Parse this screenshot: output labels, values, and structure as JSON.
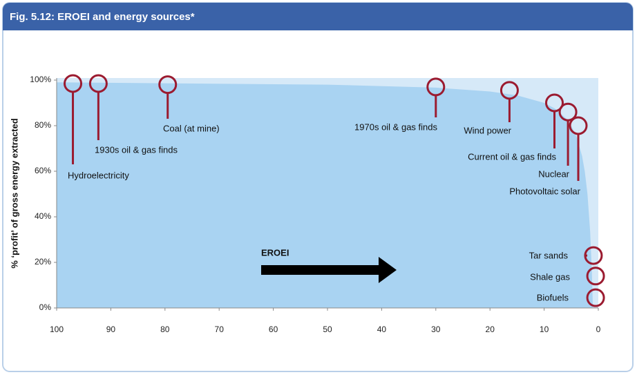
{
  "chart_data": {
    "type": "area",
    "title": "Fig. 5.12: EROEI and energy sources*",
    "y_label": "% ‘profit’ of gross energy extracted",
    "arrow_label": "EROEI",
    "xlim": [
      100,
      0
    ],
    "xticks": [
      100,
      90,
      80,
      70,
      60,
      50,
      40,
      30,
      20,
      10,
      0
    ],
    "ylim": [
      0,
      100
    ],
    "yticks": [
      {
        "value": 0,
        "label": "0%"
      },
      {
        "value": 20,
        "label": "20%"
      },
      {
        "value": 40,
        "label": "40%"
      },
      {
        "value": 60,
        "label": "60%"
      },
      {
        "value": 80,
        "label": "80%"
      },
      {
        "value": 100,
        "label": "100%"
      }
    ],
    "x": [
      100,
      50,
      30,
      20,
      15,
      10,
      8,
      6,
      5,
      4,
      3,
      2.5,
      2,
      1.5,
      1.2,
      1
    ],
    "values": [
      99,
      98,
      96.7,
      95,
      93.3,
      90,
      87.5,
      83.3,
      80,
      75,
      66.7,
      60,
      50,
      33.3,
      16.7,
      0
    ],
    "color": "#a9d3f2",
    "marker_color": "#9b1b30",
    "annotations": [
      {
        "label": "Hydroelectricity",
        "x": 97,
        "y": 98.5
      },
      {
        "label": "1930s oil & gas finds",
        "x": 92.3,
        "y": 98.5
      },
      {
        "label": "Coal (at mine)",
        "x": 79.5,
        "y": 98
      },
      {
        "label": "1970s oil & gas finds",
        "x": 30,
        "y": 97
      },
      {
        "label": "Wind power",
        "x": 16.4,
        "y": 95.5
      },
      {
        "label": "Current oil & gas finds",
        "x": 8.1,
        "y": 90
      },
      {
        "label": "Nuclear",
        "x": 5.6,
        "y": 86
      },
      {
        "label": "Photovoltaic solar",
        "x": 3.7,
        "y": 80
      },
      {
        "label": "Tar sands",
        "x": 0.9,
        "y": 23
      },
      {
        "label": "Shale gas",
        "x": 0.5,
        "y": 14
      },
      {
        "label": "Biofuels",
        "x": 0.5,
        "y": 4.5
      }
    ]
  }
}
